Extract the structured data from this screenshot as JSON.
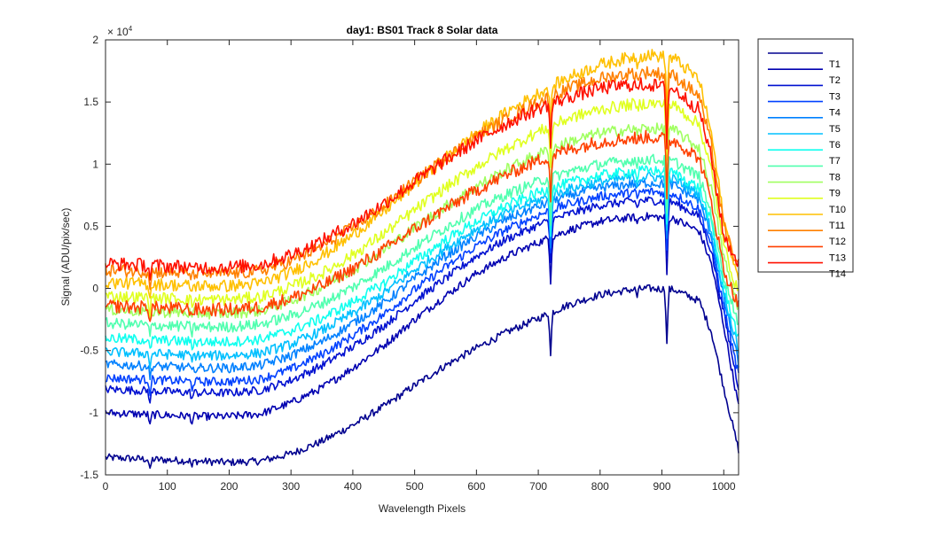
{
  "chart_data": {
    "type": "line",
    "title": "day1: BS01  Track 8 Solar data",
    "xlabel": "Wavelength Pixels",
    "ylabel": "Signal (ADU/pix/sec)",
    "y_exponent_label": "× 10",
    "y_exponent_power": "4",
    "xlim": [
      0,
      1024
    ],
    "ylim": [
      -1.5,
      2
    ],
    "x_ticks": [
      0,
      100,
      200,
      300,
      400,
      500,
      600,
      700,
      800,
      900,
      1000
    ],
    "x_tick_labels": [
      "0",
      "100",
      "200",
      "300",
      "400",
      "500",
      "600",
      "700",
      "800",
      "900",
      "1000"
    ],
    "y_ticks": [
      -1.5,
      -1,
      -0.5,
      0,
      0.5,
      1,
      1.5,
      2
    ],
    "y_tick_labels": [
      "-1.5",
      "-1",
      "-0.5",
      "0",
      "0.5",
      "1",
      "1.5",
      "2"
    ],
    "grid": false,
    "legend_position": "outside-right-top",
    "x": [
      0,
      50,
      100,
      150,
      200,
      250,
      300,
      350,
      400,
      450,
      500,
      550,
      600,
      650,
      700,
      750,
      800,
      850,
      880,
      920,
      960,
      980,
      1000,
      1024
    ],
    "series": [
      {
        "name": "T1",
        "color": "#00008f",
        "values": [
          -1.36,
          -1.37,
          -1.38,
          -1.39,
          -1.4,
          -1.39,
          -1.33,
          -1.23,
          -1.1,
          -0.95,
          -0.78,
          -0.62,
          -0.48,
          -0.35,
          -0.24,
          -0.13,
          -0.05,
          -0.01,
          0.0,
          -0.01,
          -0.1,
          -0.35,
          -0.8,
          -1.3
        ]
      },
      {
        "name": "T2",
        "color": "#0000b0",
        "values": [
          -1.0,
          -1.01,
          -1.02,
          -1.03,
          -1.03,
          -1.01,
          -0.92,
          -0.8,
          -0.64,
          -0.46,
          -0.25,
          -0.06,
          0.12,
          0.26,
          0.37,
          0.47,
          0.54,
          0.57,
          0.58,
          0.56,
          0.46,
          0.2,
          -0.3,
          -0.95
        ]
      },
      {
        "name": "T3",
        "color": "#0010d0",
        "values": [
          -0.81,
          -0.82,
          -0.83,
          -0.84,
          -0.84,
          -0.82,
          -0.74,
          -0.62,
          -0.47,
          -0.3,
          -0.1,
          0.08,
          0.26,
          0.4,
          0.51,
          0.6,
          0.67,
          0.7,
          0.71,
          0.69,
          0.58,
          0.3,
          -0.2,
          -0.8
        ]
      },
      {
        "name": "T4",
        "color": "#0040ff",
        "values": [
          -0.72,
          -0.73,
          -0.74,
          -0.75,
          -0.75,
          -0.73,
          -0.65,
          -0.53,
          -0.38,
          -0.21,
          -0.01,
          0.17,
          0.34,
          0.48,
          0.59,
          0.68,
          0.74,
          0.77,
          0.78,
          0.76,
          0.64,
          0.35,
          -0.15,
          -0.7
        ]
      },
      {
        "name": "T5",
        "color": "#0080ff",
        "values": [
          -0.61,
          -0.62,
          -0.63,
          -0.64,
          -0.64,
          -0.62,
          -0.54,
          -0.43,
          -0.28,
          -0.12,
          0.08,
          0.26,
          0.42,
          0.56,
          0.66,
          0.75,
          0.81,
          0.84,
          0.85,
          0.83,
          0.71,
          0.42,
          -0.08,
          -0.6
        ]
      },
      {
        "name": "T6",
        "color": "#00c0ff",
        "values": [
          -0.51,
          -0.52,
          -0.53,
          -0.54,
          -0.54,
          -0.52,
          -0.45,
          -0.34,
          -0.2,
          -0.04,
          0.15,
          0.32,
          0.48,
          0.61,
          0.71,
          0.8,
          0.86,
          0.89,
          0.9,
          0.88,
          0.76,
          0.47,
          -0.03,
          -0.5
        ]
      },
      {
        "name": "T7",
        "color": "#10ffef",
        "values": [
          -0.4,
          -0.41,
          -0.42,
          -0.43,
          -0.43,
          -0.41,
          -0.34,
          -0.24,
          -0.11,
          0.04,
          0.22,
          0.39,
          0.54,
          0.67,
          0.77,
          0.85,
          0.91,
          0.94,
          0.95,
          0.93,
          0.81,
          0.52,
          0.02,
          -0.4
        ]
      },
      {
        "name": "T8",
        "color": "#50ffaf",
        "values": [
          -0.28,
          -0.29,
          -0.3,
          -0.31,
          -0.31,
          -0.29,
          -0.22,
          -0.12,
          0.01,
          0.16,
          0.33,
          0.49,
          0.64,
          0.76,
          0.86,
          0.94,
          1.0,
          1.03,
          1.04,
          1.02,
          0.9,
          0.6,
          0.1,
          -0.28
        ]
      },
      {
        "name": "T9",
        "color": "#a0ff60",
        "values": [
          -0.17,
          -0.18,
          -0.19,
          -0.2,
          -0.2,
          -0.18,
          -0.1,
          0.01,
          0.15,
          0.31,
          0.49,
          0.66,
          0.82,
          0.96,
          1.08,
          1.18,
          1.25,
          1.28,
          1.29,
          1.27,
          1.13,
          0.8,
          0.25,
          -0.16
        ]
      },
      {
        "name": "T10",
        "color": "#e0ff20",
        "values": [
          -0.06,
          -0.07,
          -0.08,
          -0.09,
          -0.09,
          -0.07,
          0.01,
          0.12,
          0.27,
          0.44,
          0.63,
          0.81,
          0.98,
          1.13,
          1.26,
          1.37,
          1.44,
          1.48,
          1.49,
          1.47,
          1.32,
          0.95,
          0.35,
          -0.05
        ]
      },
      {
        "name": "T11",
        "color": "#ffc000",
        "values": [
          0.05,
          0.04,
          0.03,
          0.02,
          0.02,
          0.04,
          0.13,
          0.26,
          0.43,
          0.62,
          0.84,
          1.05,
          1.25,
          1.42,
          1.57,
          1.7,
          1.8,
          1.86,
          1.88,
          1.85,
          1.68,
          1.25,
          0.55,
          0.06
        ]
      },
      {
        "name": "T12",
        "color": "#ff8000",
        "values": [
          0.15,
          0.14,
          0.13,
          0.12,
          0.12,
          0.14,
          0.22,
          0.34,
          0.49,
          0.66,
          0.86,
          1.05,
          1.22,
          1.37,
          1.5,
          1.61,
          1.69,
          1.73,
          1.74,
          1.71,
          1.55,
          1.15,
          0.5,
          0.15
        ]
      },
      {
        "name": "T13",
        "color": "#ff4000",
        "values": [
          -0.14,
          -0.15,
          -0.16,
          -0.17,
          -0.17,
          -0.15,
          -0.08,
          0.02,
          0.16,
          0.31,
          0.48,
          0.64,
          0.79,
          0.92,
          1.03,
          1.12,
          1.18,
          1.21,
          1.22,
          1.19,
          1.05,
          0.7,
          0.15,
          -0.14
        ]
      },
      {
        "name": "T14",
        "color": "#ff1000",
        "values": [
          0.2,
          0.19,
          0.18,
          0.17,
          0.17,
          0.19,
          0.27,
          0.38,
          0.52,
          0.68,
          0.86,
          1.03,
          1.19,
          1.33,
          1.45,
          1.54,
          1.61,
          1.64,
          1.64,
          1.6,
          1.44,
          1.05,
          0.42,
          0.2
        ]
      }
    ]
  }
}
